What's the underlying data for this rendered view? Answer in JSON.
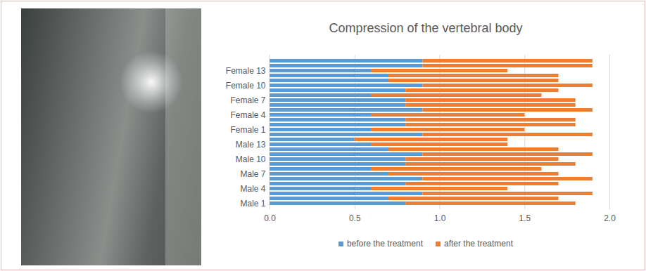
{
  "chart_data": {
    "type": "bar",
    "orientation": "horizontal",
    "stacked": true,
    "title": "Compression of the vertebral body",
    "categories": [
      "Male 1",
      null,
      null,
      "Male 4",
      null,
      null,
      "Male 7",
      null,
      null,
      "Male 10",
      null,
      null,
      "Male 13",
      null,
      null,
      "Female 1",
      null,
      null,
      "Female 4",
      null,
      null,
      "Female 7",
      null,
      null,
      "Female 10",
      null,
      null,
      "Female 13",
      null,
      null
    ],
    "series": [
      {
        "name": "before the treatment",
        "color": "#5b9bd5",
        "values": [
          0.8,
          0.7,
          0.9,
          0.6,
          0.8,
          0.9,
          0.7,
          0.6,
          0.8,
          0.8,
          0.9,
          0.7,
          0.6,
          0.5,
          0.9,
          0.6,
          0.8,
          0.8,
          0.6,
          0.9,
          0.8,
          0.8,
          0.6,
          0.8,
          0.9,
          0.7,
          0.7,
          0.6,
          0.9,
          0.9
        ]
      },
      {
        "name": "after the treatment",
        "color": "#ed7d31",
        "values": [
          1.0,
          1.0,
          1.0,
          0.8,
          0.9,
          1.0,
          1.0,
          1.0,
          1.0,
          0.9,
          1.0,
          1.0,
          0.8,
          0.9,
          1.0,
          0.9,
          1.0,
          1.0,
          0.9,
          1.0,
          1.0,
          1.0,
          1.0,
          0.9,
          1.0,
          1.0,
          1.0,
          0.8,
          1.0,
          1.0
        ]
      }
    ],
    "xlim": [
      0,
      2
    ],
    "xticks": [
      0,
      0.5,
      1,
      1.5,
      2
    ],
    "grid": true,
    "legend": "bottom"
  }
}
